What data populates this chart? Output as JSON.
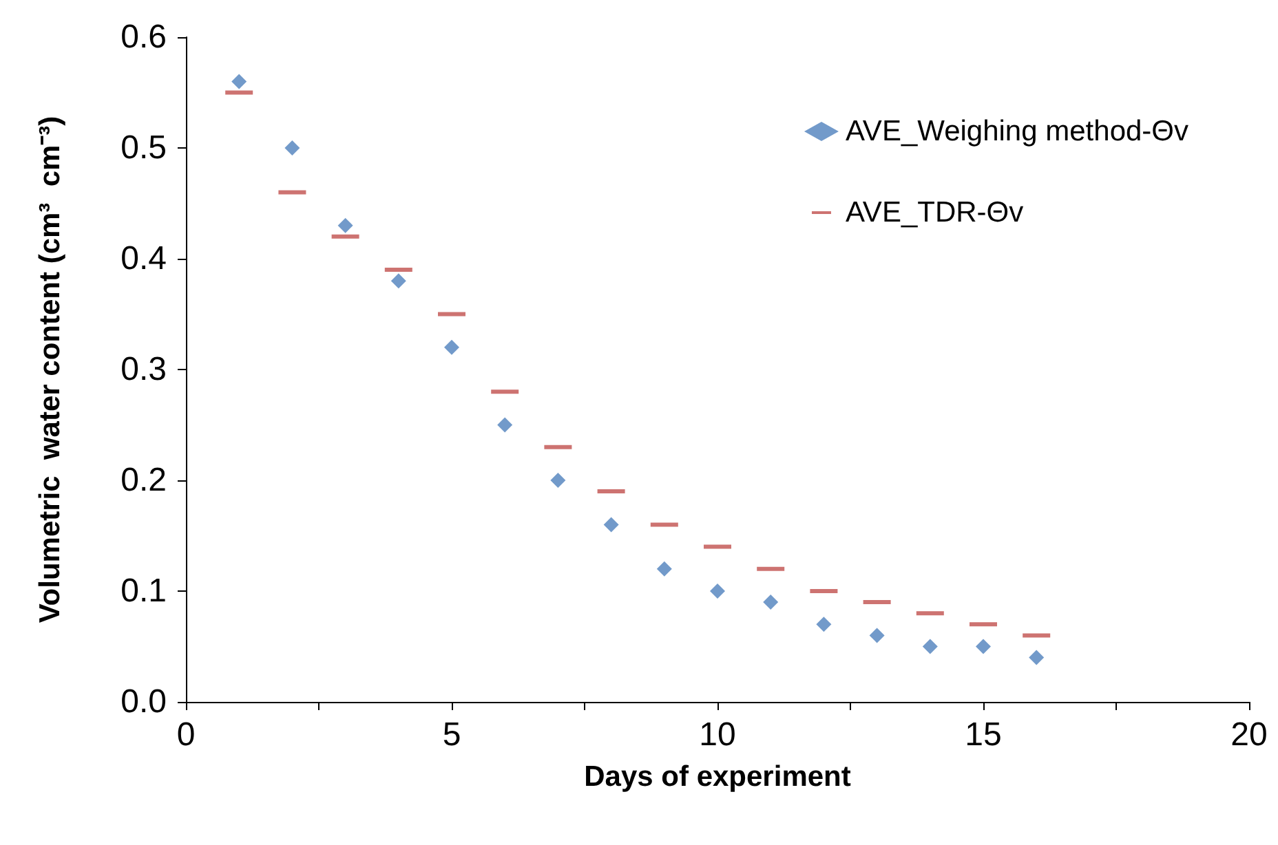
{
  "chart_data": {
    "type": "scatter",
    "xlabel": "Days of experiment",
    "ylabel": "Volumetric  water content (cm³  cm⁻³)",
    "x": [
      1,
      2,
      3,
      4,
      5,
      6,
      7,
      8,
      9,
      10,
      11,
      12,
      13,
      14,
      15,
      16
    ],
    "series": [
      {
        "name": "AVE_Weighing method-Θv",
        "color": "#4f81bd",
        "marker": "diamond",
        "values": [
          0.56,
          0.5,
          0.43,
          0.38,
          0.32,
          0.25,
          0.2,
          0.16,
          0.12,
          0.1,
          0.09,
          0.07,
          0.06,
          0.05,
          0.05,
          0.04
        ]
      },
      {
        "name": "AVE_TDR-Θv",
        "color": "#c0504d",
        "values": [
          0.55,
          0.46,
          0.42,
          0.39,
          0.35,
          0.28,
          0.23,
          0.19,
          0.16,
          0.14,
          0.12,
          0.1,
          0.09,
          0.08,
          0.07,
          0.06
        ]
      }
    ],
    "xlim": [
      0,
      20
    ],
    "xticks": [
      0,
      {
        "value": 2.5,
        "label": null
      },
      5,
      {
        "value": 7.5,
        "label": null
      },
      10,
      {
        "value": 12.5,
        "label": null
      },
      15,
      {
        "value": 17.5,
        "label": null
      },
      20
    ],
    "ylim": [
      0,
      0.6
    ],
    "yticks": [
      {
        "value": 0,
        "label": "0.0"
      },
      {
        "value": 0.1,
        "label": "0.1"
      },
      {
        "value": 0.2,
        "label": "0.2"
      },
      {
        "value": 0.3,
        "label": "0.3"
      },
      {
        "value": 0.4,
        "label": "0.4"
      },
      {
        "value": 0.5,
        "label": "0.5"
      },
      {
        "value": 0.6,
        "label": "0.6"
      }
    ],
    "grid": false,
    "legend": "top right"
  }
}
